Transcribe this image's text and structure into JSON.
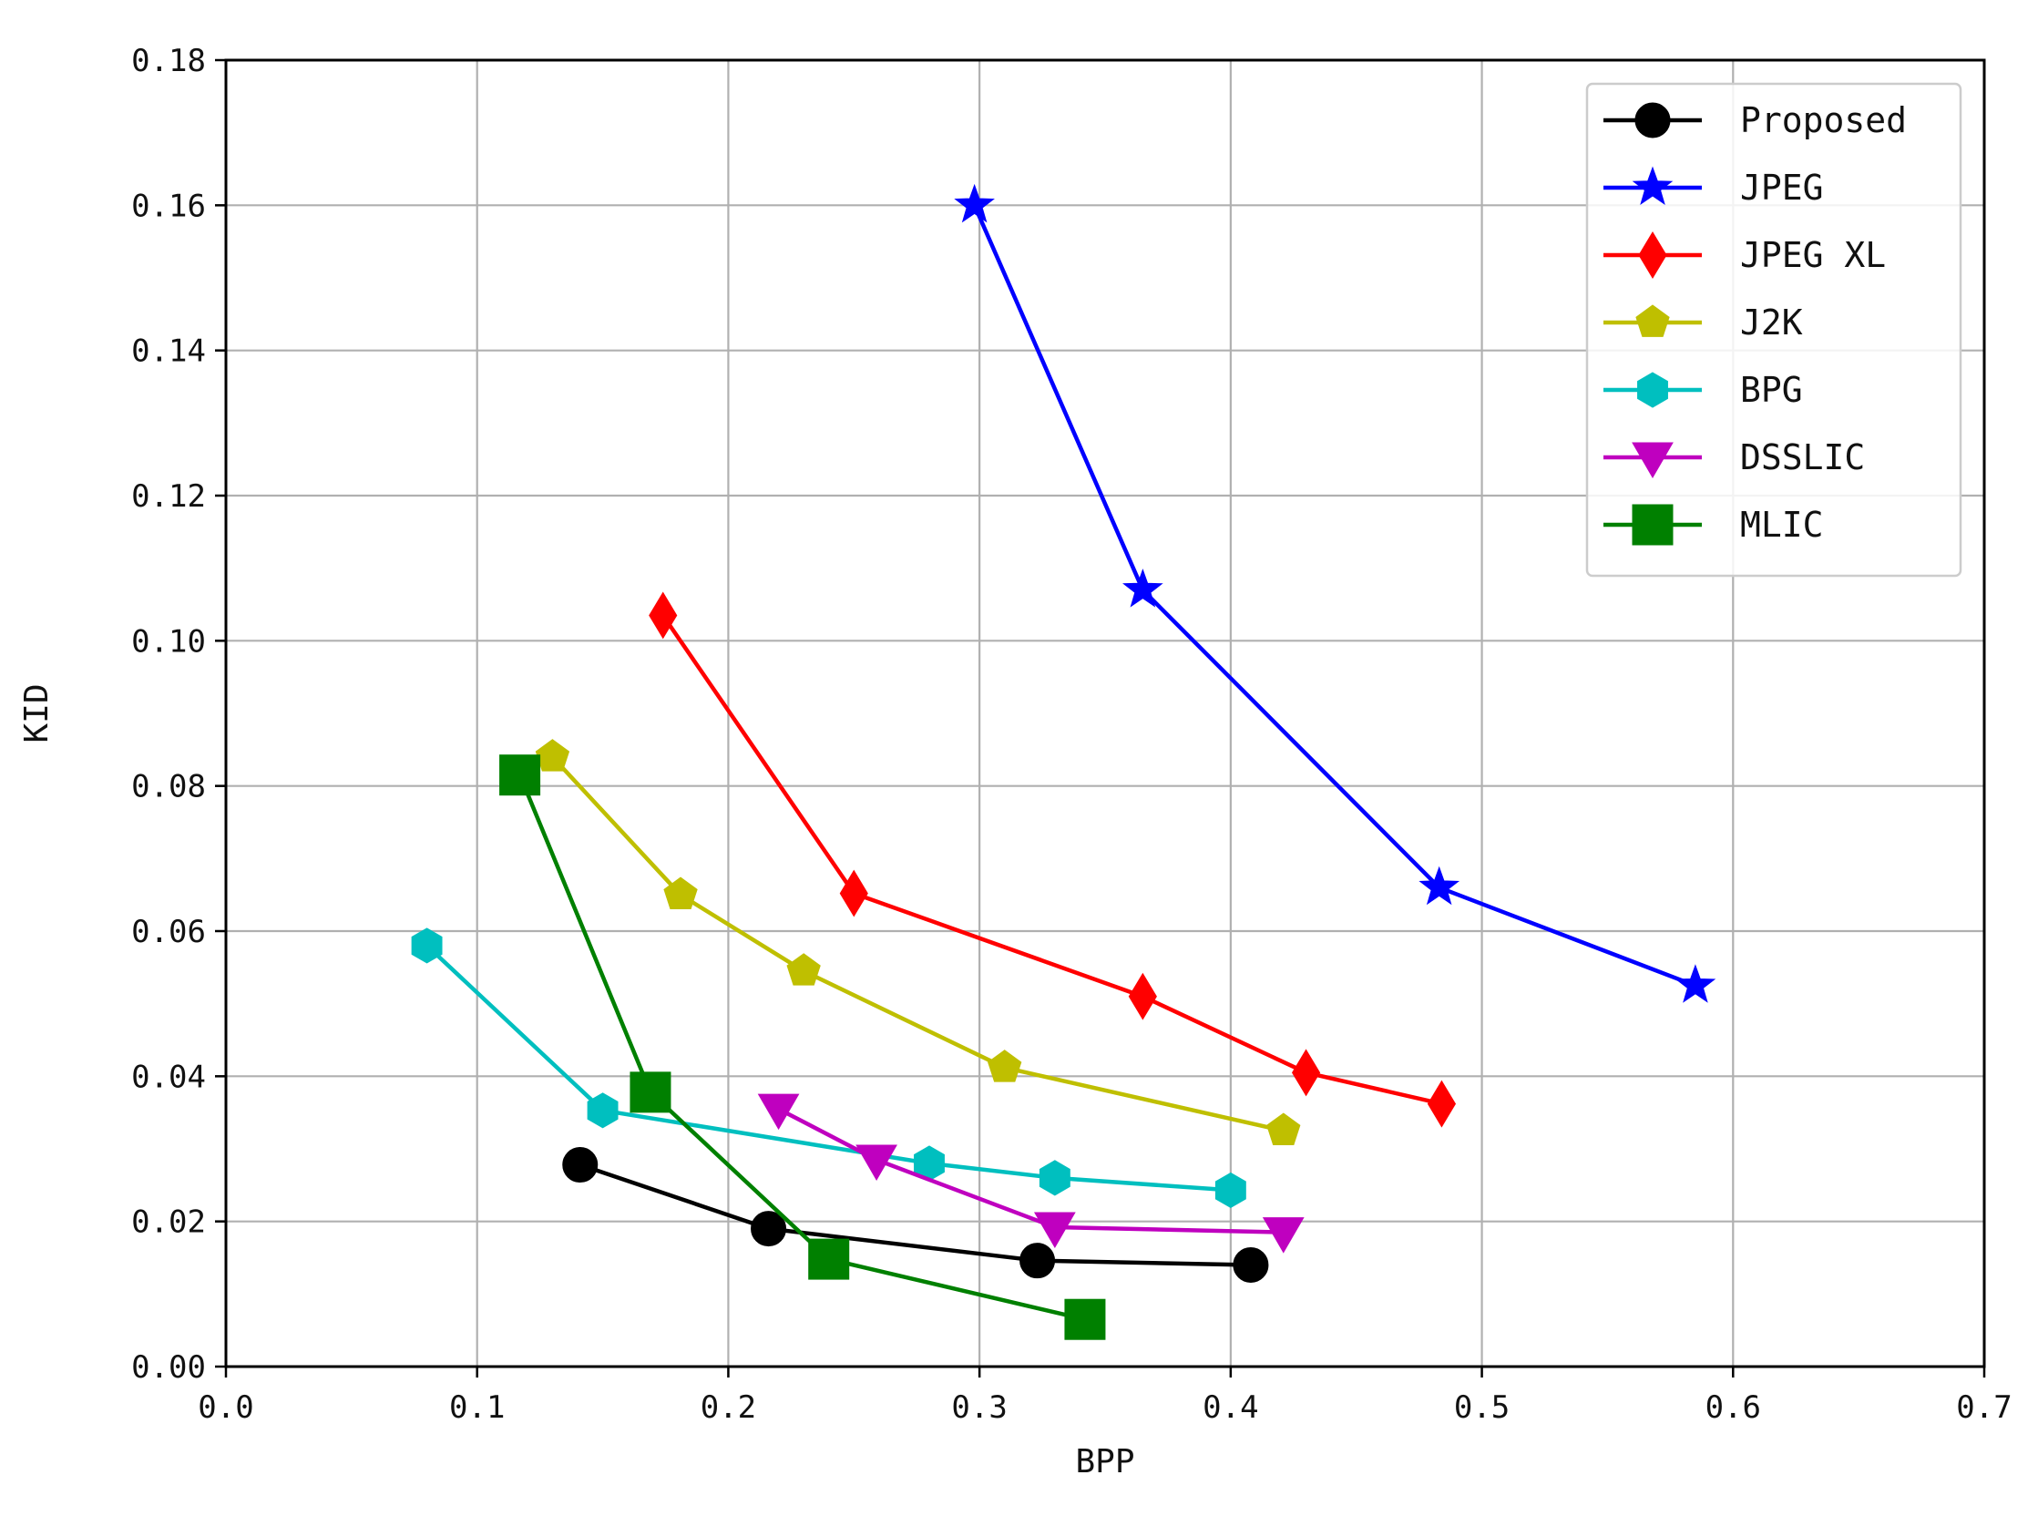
{
  "chart_data": {
    "type": "line",
    "title": "",
    "xlabel": "BPP",
    "ylabel": "KID",
    "xlim": [
      0.0,
      0.7
    ],
    "ylim": [
      0.0,
      0.18
    ],
    "xticks": [
      "0.0",
      "0.1",
      "0.2",
      "0.3",
      "0.4",
      "0.5",
      "0.6",
      "0.7"
    ],
    "yticks": [
      "0.00",
      "0.02",
      "0.04",
      "0.06",
      "0.08",
      "0.10",
      "0.12",
      "0.14",
      "0.16",
      "0.18"
    ],
    "grid": true,
    "legend_position": "top-right",
    "series": [
      {
        "name": "Proposed",
        "color": "#000000",
        "marker": "circle",
        "x": [
          0.141,
          0.216,
          0.323,
          0.408
        ],
        "y": [
          0.0278,
          0.019,
          0.0146,
          0.014
        ]
      },
      {
        "name": "JPEG",
        "color": "#0000ff",
        "marker": "star",
        "x": [
          0.298,
          0.365,
          0.483,
          0.585
        ],
        "y": [
          0.16,
          0.107,
          0.066,
          0.0525
        ]
      },
      {
        "name": "JPEG XL",
        "color": "#ff0000",
        "marker": "diamond",
        "x": [
          0.174,
          0.25,
          0.365,
          0.43,
          0.484
        ],
        "y": [
          0.1035,
          0.0652,
          0.051,
          0.0405,
          0.0362
        ]
      },
      {
        "name": "J2K",
        "color": "#bfbf00",
        "marker": "pentagon",
        "x": [
          0.13,
          0.181,
          0.23,
          0.31,
          0.421
        ],
        "y": [
          0.084,
          0.065,
          0.0545,
          0.0412,
          0.0325
        ]
      },
      {
        "name": "BPG",
        "color": "#00bfbf",
        "marker": "hexagon",
        "x": [
          0.08,
          0.15,
          0.28,
          0.33,
          0.4
        ],
        "y": [
          0.058,
          0.0353,
          0.028,
          0.026,
          0.0243
        ]
      },
      {
        "name": "DSSLIC",
        "color": "#bf00bf",
        "marker": "triangle-down",
        "x": [
          0.22,
          0.259,
          0.33,
          0.421
        ],
        "y": [
          0.0355,
          0.0285,
          0.0192,
          0.0185
        ]
      },
      {
        "name": "MLIC",
        "color": "#008000",
        "marker": "square",
        "x": [
          0.117,
          0.169,
          0.24,
          0.342
        ],
        "y": [
          0.0815,
          0.0378,
          0.0148,
          0.0065
        ]
      }
    ]
  }
}
